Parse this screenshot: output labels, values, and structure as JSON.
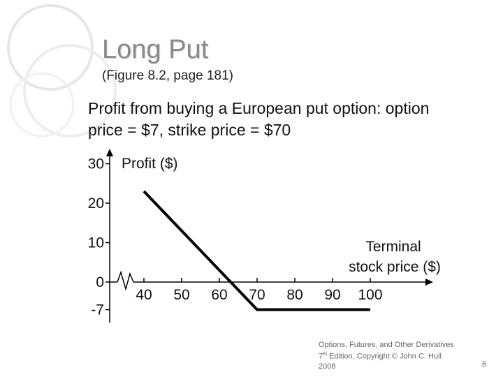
{
  "slide": {
    "title": "Long Put",
    "subtitle": "(Figure 8.2, page 181)",
    "description": "Profit from buying a European put option: option price = $7, strike price = $70",
    "footer": {
      "line1": "Options, Futures, and Other Derivatives",
      "edition_num": "7",
      "edition_sup": "th",
      "edition_rest": " Edition, Copyright © John C. Hull",
      "year": "2008"
    },
    "page_number": "6"
  },
  "chart_data": {
    "type": "line",
    "y_axis_title": "Profit ($)",
    "x_axis_title_line1": "Terminal",
    "x_axis_title_line2": "stock price ($)",
    "x_ticks": [
      "40",
      "50",
      "60",
      "70",
      "80",
      "90",
      "100"
    ],
    "y_ticks": [
      "30",
      "20",
      "10",
      "0",
      "-7"
    ],
    "axis_break": true,
    "series": [
      {
        "x": [
          40,
          70,
          100
        ],
        "y": [
          23,
          -7,
          -7
        ]
      }
    ],
    "xlim": [
      30,
      100
    ],
    "ylim": [
      -10,
      30
    ],
    "line_color": "#000000"
  }
}
